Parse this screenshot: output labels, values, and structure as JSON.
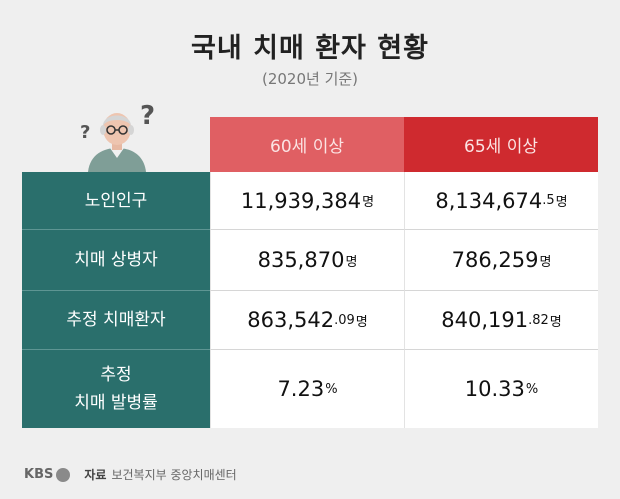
{
  "title": "국내 치매 환자 현황",
  "subtitle": "(2020년 기준)",
  "table": {
    "headers": [
      "60세 이상",
      "65세 이상"
    ],
    "rows": [
      {
        "label": "노인인구",
        "v60": {
          "main": "11,939,384",
          "dec": "",
          "unit": "명"
        },
        "v65": {
          "main": "8,134,674",
          "dec": ".5",
          "unit": "명"
        }
      },
      {
        "label": "치매 상병자",
        "v60": {
          "main": "835,870",
          "dec": "",
          "unit": "명"
        },
        "v65": {
          "main": "786,259",
          "dec": "",
          "unit": "명"
        }
      },
      {
        "label": "추정 치매환자",
        "v60": {
          "main": "863,542",
          "dec": ".09",
          "unit": "명"
        },
        "v65": {
          "main": "840,191",
          "dec": ".82",
          "unit": "명"
        }
      },
      {
        "label_line1": "추정",
        "label_line2": "치매 발병률",
        "v60": {
          "main": "7.23",
          "dec": "",
          "unit": "%"
        },
        "v65": {
          "main": "10.33",
          "dec": "",
          "unit": "%"
        }
      }
    ]
  },
  "footer": {
    "brand": "KBS",
    "source_label": "자료",
    "source": "보건복지부 중앙치매센터"
  },
  "colors": {
    "header_60": "#e05f63",
    "header_65": "#cf2a2f",
    "label_bg": "#2a6f6c",
    "background": "#efefef"
  },
  "icons": [
    "elderly-person-icon",
    "question-mark-icon"
  ]
}
